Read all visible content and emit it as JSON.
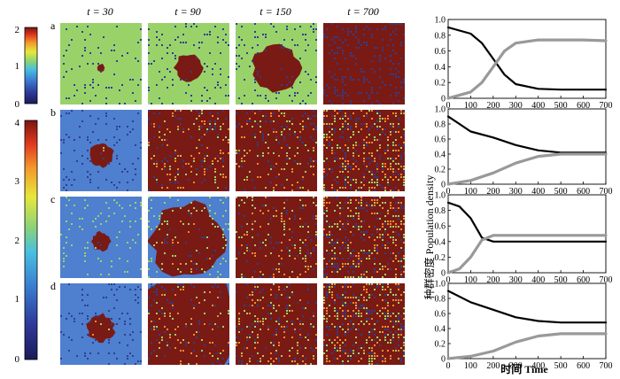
{
  "figure": {
    "time_headers": [
      "t = 30",
      "t = 90",
      "t = 150",
      "t = 700"
    ],
    "row_labels": [
      "a",
      "b",
      "c",
      "d"
    ],
    "colorbar_top": {
      "min_label": "0",
      "mid_label": "1",
      "max_label": "2",
      "levels": 3
    },
    "colorbar_bottom": {
      "labels": [
        "0",
        "1",
        "2",
        "3",
        "4"
      ],
      "levels": 5
    },
    "palette": [
      "#2f3f8f",
      "#4f7fcf",
      "#9ad26a",
      "#f08a2a",
      "#7a1a14"
    ],
    "snapshots": [
      {
        "row": "a",
        "background": "#9ad26a",
        "patch_color": "#7a1a14",
        "patch_radius": [
          0.06,
          0.22,
          0.38,
          1.0
        ],
        "noise": [
          "#2f3f8f",
          "#7a1a14"
        ]
      },
      {
        "row": "b",
        "background": "#4f7fcf",
        "patch_color": "#7a1a14",
        "patch_radius": [
          0.2,
          1.0,
          1.0,
          1.0
        ],
        "noise": [
          "#2f3f8f",
          "#9ad26a",
          "#f08a2a"
        ]
      },
      {
        "row": "c",
        "background": "#4f7fcf",
        "patch_color": "#7a1a14",
        "patch_radius": [
          0.15,
          0.6,
          1.0,
          1.0
        ],
        "noise": [
          "#9ad26a",
          "#f08a2a",
          "#2f3f8f"
        ]
      },
      {
        "row": "d",
        "background": "#4f7fcf",
        "patch_color": "#7a1a14",
        "patch_radius": [
          0.22,
          0.9,
          1.0,
          1.0
        ],
        "noise": [
          "#2f3f8f",
          "#9ad26a",
          "#f08a2a"
        ]
      }
    ]
  },
  "chart_data": [
    {
      "type": "line",
      "panel": "a",
      "x": [
        0,
        100,
        150,
        200,
        250,
        300,
        400,
        500,
        600,
        700
      ],
      "series": [
        {
          "color": "#000000",
          "values": [
            0.9,
            0.82,
            0.7,
            0.5,
            0.3,
            0.18,
            0.12,
            0.11,
            0.11,
            0.11
          ]
        },
        {
          "color": "#999999",
          "values": [
            0.0,
            0.08,
            0.2,
            0.4,
            0.6,
            0.7,
            0.74,
            0.74,
            0.74,
            0.73
          ]
        }
      ],
      "xlim": [
        0,
        700
      ],
      "ylim": [
        0,
        1.0
      ],
      "xticks": [
        "0",
        "100",
        "200",
        "300",
        "400",
        "500",
        "600",
        "700"
      ],
      "yticks": [
        "0",
        "0.2",
        "0.4",
        "0.6",
        "0.8",
        "1.0"
      ]
    },
    {
      "type": "line",
      "panel": "b",
      "x": [
        0,
        100,
        200,
        300,
        400,
        500,
        600,
        700
      ],
      "series": [
        {
          "color": "#000000",
          "values": [
            0.9,
            0.7,
            0.62,
            0.52,
            0.45,
            0.42,
            0.42,
            0.42
          ]
        },
        {
          "color": "#999999",
          "values": [
            0.0,
            0.05,
            0.15,
            0.28,
            0.37,
            0.4,
            0.4,
            0.4
          ]
        }
      ],
      "xlim": [
        0,
        700
      ],
      "ylim": [
        0,
        1.0
      ],
      "xticks": [
        "0",
        "100",
        "200",
        "300",
        "400",
        "500",
        "600",
        "700"
      ],
      "yticks": [
        "0",
        "0.2",
        "0.4",
        "0.6",
        "0.8",
        "1.0"
      ]
    },
    {
      "type": "line",
      "panel": "c",
      "x": [
        0,
        50,
        100,
        150,
        200,
        300,
        400,
        500,
        600,
        700
      ],
      "series": [
        {
          "color": "#000000",
          "values": [
            0.9,
            0.85,
            0.7,
            0.45,
            0.4,
            0.4,
            0.4,
            0.4,
            0.4,
            0.4
          ]
        },
        {
          "color": "#999999",
          "values": [
            0.0,
            0.05,
            0.2,
            0.42,
            0.48,
            0.48,
            0.48,
            0.48,
            0.48,
            0.48
          ]
        }
      ],
      "xlim": [
        0,
        700
      ],
      "ylim": [
        0,
        1.0
      ],
      "xticks": [
        "0",
        "100",
        "200",
        "300",
        "400",
        "500",
        "600",
        "700"
      ],
      "yticks": [
        "0",
        "0.2",
        "0.4",
        "0.6",
        "0.8",
        "1.0"
      ]
    },
    {
      "type": "line",
      "panel": "d",
      "x": [
        0,
        100,
        200,
        300,
        400,
        500,
        600,
        700
      ],
      "series": [
        {
          "color": "#000000",
          "values": [
            0.9,
            0.75,
            0.65,
            0.55,
            0.5,
            0.48,
            0.48,
            0.48
          ]
        },
        {
          "color": "#999999",
          "values": [
            0.0,
            0.03,
            0.1,
            0.22,
            0.3,
            0.33,
            0.33,
            0.33
          ]
        }
      ],
      "xlim": [
        0,
        700
      ],
      "ylim": [
        0,
        1.0
      ],
      "xticks": [
        "0",
        "100",
        "200",
        "300",
        "400",
        "500",
        "600",
        "700"
      ],
      "yticks": [
        "0",
        "0.2",
        "0.4",
        "0.6",
        "0.8",
        "1.0"
      ]
    }
  ],
  "axes": {
    "ylabel": "种群密度 Population density",
    "xlabel": "时间 Time"
  }
}
